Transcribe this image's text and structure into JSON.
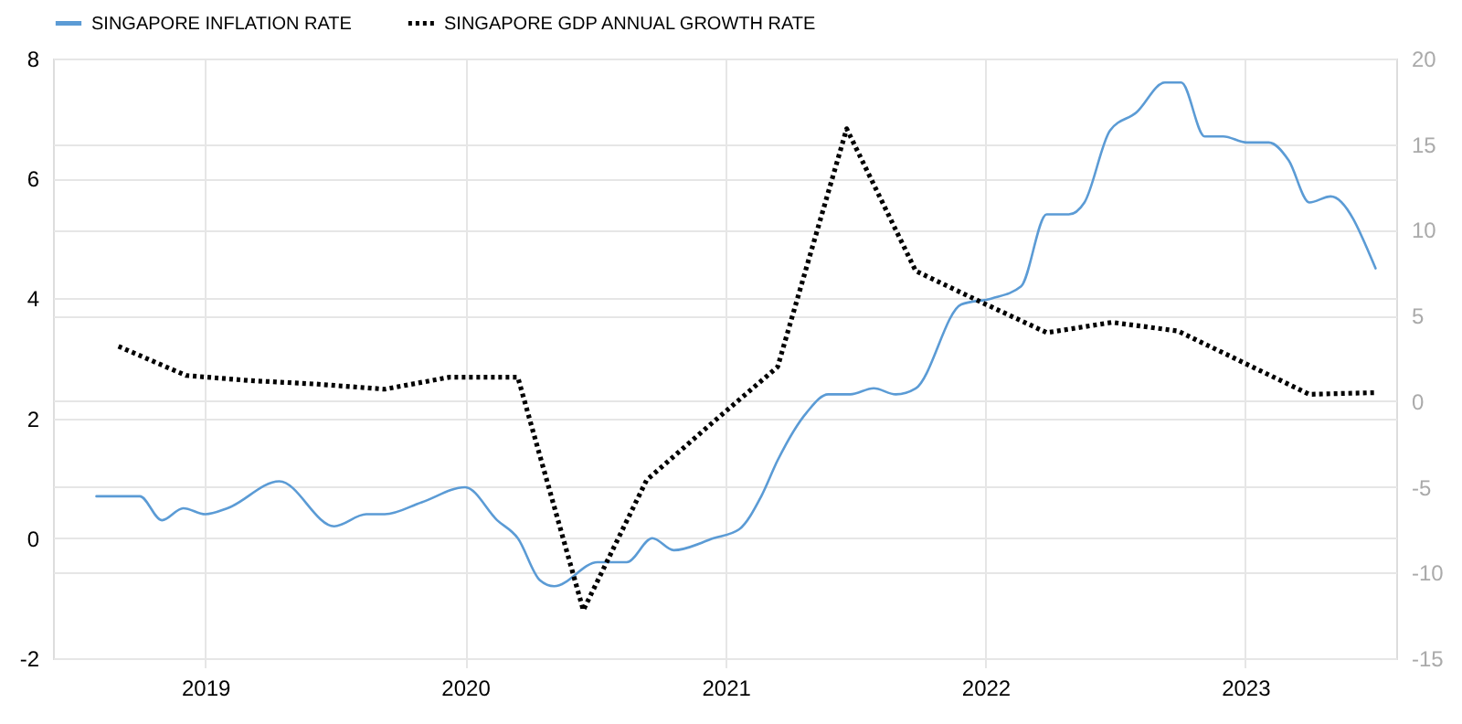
{
  "chart_data": {
    "type": "line",
    "xlim": [
      "2018-06-01",
      "2023-08-01"
    ],
    "xticks": [
      {
        "value": "2019-01-01",
        "label": "2019"
      },
      {
        "value": "2020-01-01",
        "label": "2020"
      },
      {
        "value": "2021-01-01",
        "label": "2021"
      },
      {
        "value": "2022-01-01",
        "label": "2022"
      },
      {
        "value": "2023-01-01",
        "label": "2023"
      }
    ],
    "ylim": [
      -2,
      8
    ],
    "yticks": [
      -2,
      0,
      2,
      4,
      6,
      8
    ],
    "y2lim": [
      -15,
      20
    ],
    "y2ticks": [
      -15,
      -10,
      -5,
      0,
      5,
      10,
      15,
      20
    ],
    "grid": true,
    "legend": "top left",
    "series": [
      {
        "name": "SINGAPORE INFLATION RATE",
        "color": "#5b9bd5",
        "line_style": "solid",
        "x": [
          "2018-08-01",
          "2018-10-01",
          "2018-11-01",
          "2018-12-01",
          "2019-01-01",
          "2019-02-01",
          "2019-04-15",
          "2019-07-01",
          "2019-08-15",
          "2019-09-10",
          "2019-11-01",
          "2020-01-01",
          "2020-02-15",
          "2020-03-15",
          "2020-04-15",
          "2020-05-05",
          "2020-07-05",
          "2020-08-15",
          "2020-09-20",
          "2020-10-20",
          "2020-12-15",
          "2021-01-20",
          "2021-02-20",
          "2021-03-15",
          "2021-04-25",
          "2021-05-25",
          "2021-06-25",
          "2021-07-28",
          "2021-08-28",
          "2021-09-25",
          "2021-11-28",
          "2022-01-10",
          "2022-02-20",
          "2022-03-28",
          "2022-04-28",
          "2022-05-20",
          "2022-06-25",
          "2022-08-01",
          "2022-09-10",
          "2022-10-03",
          "2022-11-05",
          "2022-12-01",
          "2023-01-03",
          "2023-02-03",
          "2023-03-03",
          "2023-04-01",
          "2023-05-01",
          "2023-07-03"
        ],
        "values": [
          0.7,
          0.7,
          0.3,
          0.5,
          0.4,
          0.5,
          0.95,
          0.2,
          0.4,
          0.4,
          0.6,
          0.85,
          0.3,
          0.0,
          -0.7,
          -0.8,
          -0.4,
          -0.4,
          0.0,
          -0.2,
          0.0,
          0.15,
          0.7,
          1.3,
          2.1,
          2.4,
          2.4,
          2.5,
          2.4,
          2.5,
          3.9,
          4.0,
          4.2,
          5.4,
          5.4,
          5.6,
          6.8,
          7.1,
          7.6,
          7.6,
          6.7,
          6.7,
          6.6,
          6.6,
          6.3,
          5.6,
          5.7,
          4.5
        ]
      },
      {
        "name": "SINGAPORE GDP ANNUAL GROWTH RATE",
        "color": "#000000",
        "line_style": "dotted",
        "axis": "y2",
        "x": [
          "2018-09-01",
          "2018-12-05",
          "2019-03-05",
          "2019-06-05",
          "2019-09-10",
          "2019-12-10",
          "2020-03-15",
          "2020-06-15",
          "2020-09-12",
          "2020-12-15",
          "2021-03-15",
          "2021-06-20",
          "2021-09-25",
          "2021-12-25",
          "2022-03-28",
          "2022-06-28",
          "2022-09-28",
          "2023-01-01",
          "2023-04-01",
          "2023-07-03"
        ],
        "values": [
          3.2,
          1.5,
          1.2,
          1.0,
          0.7,
          1.4,
          1.4,
          -12.2,
          -4.6,
          -1.2,
          2.0,
          15.9,
          7.6,
          5.8,
          4.0,
          4.6,
          4.1,
          2.2,
          0.4,
          0.5
        ]
      }
    ]
  }
}
